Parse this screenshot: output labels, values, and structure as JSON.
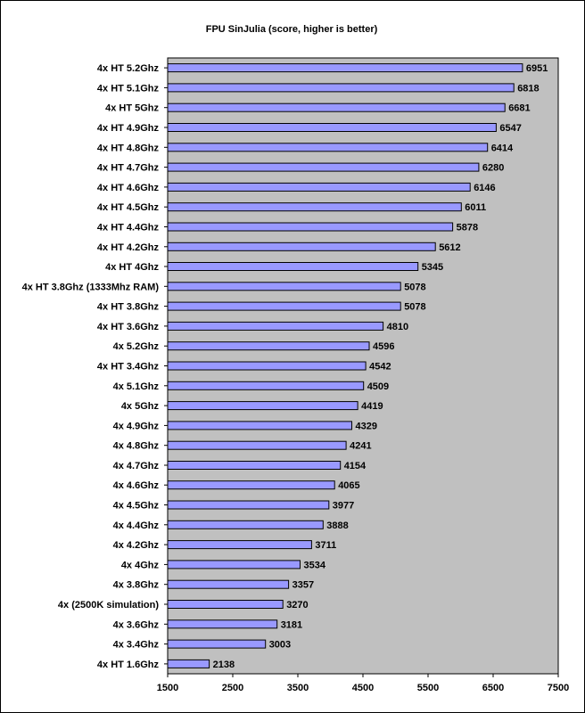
{
  "chart_data": {
    "type": "bar",
    "orientation": "horizontal",
    "title": "FPU SinJulia (score, higher is better)",
    "xlabel": "",
    "ylabel": "",
    "xlim": [
      1500,
      7500
    ],
    "xticks": [
      1500,
      2500,
      3500,
      4500,
      5500,
      6500,
      7500
    ],
    "grid": false,
    "legend": "none",
    "colors": {
      "bar": "#9999ff",
      "plot_bg": "#c0c0c0",
      "frame": "#000000"
    },
    "categories": [
      "4x HT 5.2Ghz",
      "4x HT 5.1Ghz",
      "4x HT 5Ghz",
      "4x HT 4.9Ghz",
      "4x HT 4.8Ghz",
      "4x HT 4.7Ghz",
      "4x HT 4.6Ghz",
      "4x HT 4.5Ghz",
      "4x HT 4.4Ghz",
      "4x HT 4.2Ghz",
      "4x HT 4Ghz",
      "4x HT 3.8Ghz (1333Mhz RAM)",
      "4x HT 3.8Ghz",
      "4x HT 3.6Ghz",
      "4x 5.2Ghz",
      "4x HT 3.4Ghz",
      "4x 5.1Ghz",
      "4x 5Ghz",
      "4x 4.9Ghz",
      "4x 4.8Ghz",
      "4x 4.7Ghz",
      "4x 4.6Ghz",
      "4x 4.5Ghz",
      "4x 4.4Ghz",
      "4x 4.2Ghz",
      "4x 4Ghz",
      "4x 3.8Ghz",
      "4x (2500K simulation)",
      "4x 3.6Ghz",
      "4x 3.4Ghz",
      "4x HT 1.6Ghz"
    ],
    "values": [
      6951,
      6818,
      6681,
      6547,
      6414,
      6280,
      6146,
      6011,
      5878,
      5612,
      5345,
      5078,
      5078,
      4810,
      4596,
      4542,
      4509,
      4419,
      4329,
      4241,
      4154,
      4065,
      3977,
      3888,
      3711,
      3534,
      3357,
      3270,
      3181,
      3003,
      2138
    ]
  }
}
